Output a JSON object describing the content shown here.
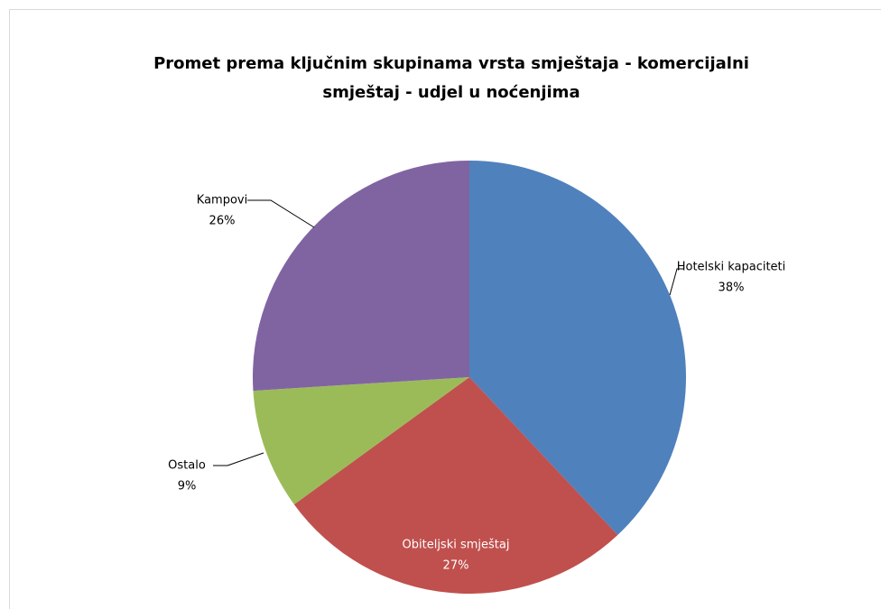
{
  "chart_data": {
    "type": "pie",
    "title": "Promet prema ključnim skupinama vrsta smještaja - komercijalni smještaj - udjel u noćenjima",
    "categories": [
      "Hotelski kapaciteti",
      "Obiteljski smještaj",
      "Ostalo",
      "Kampovi"
    ],
    "values": [
      38,
      27,
      9,
      26
    ],
    "value_labels": [
      "38%",
      "27%",
      "9%",
      "26%"
    ],
    "colors": [
      "#4f81bd",
      "#c0504d",
      "#9bbb59",
      "#8064a2"
    ]
  }
}
